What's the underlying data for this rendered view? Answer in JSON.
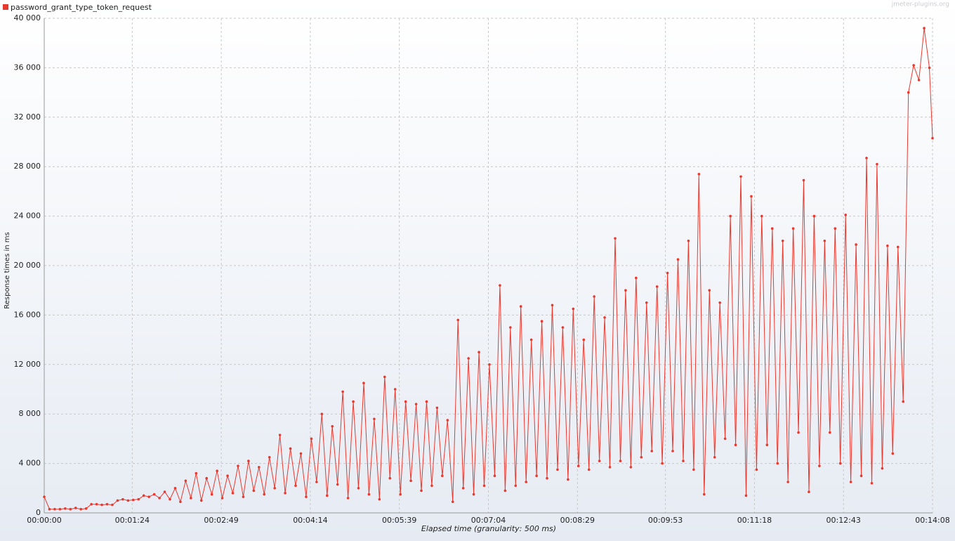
{
  "chart_data": {
    "type": "line",
    "watermark": "jmeter-plugins.org",
    "xlabel": "Elapsed time (granularity: 500 ms)",
    "ylabel": "Response times in ms",
    "xlim": [
      0,
      848
    ],
    "ylim": [
      0,
      40000
    ],
    "xticks": [
      {
        "value": 0,
        "label": "00:00:00"
      },
      {
        "value": 84,
        "label": "00:01:24"
      },
      {
        "value": 169,
        "label": "00:02:49"
      },
      {
        "value": 254,
        "label": "00:04:14"
      },
      {
        "value": 339,
        "label": "00:05:39"
      },
      {
        "value": 424,
        "label": "00:07:04"
      },
      {
        "value": 509,
        "label": "00:08:29"
      },
      {
        "value": 593,
        "label": "00:09:53"
      },
      {
        "value": 678,
        "label": "00:11:18"
      },
      {
        "value": 763,
        "label": "00:12:43"
      },
      {
        "value": 848,
        "label": "00:14:08"
      }
    ],
    "yticks": [
      0,
      {
        "value": 4000,
        "label": "4 000"
      },
      {
        "value": 8000,
        "label": "8 000"
      },
      {
        "value": 12000,
        "label": "12 000"
      },
      {
        "value": 16000,
        "label": "16 000"
      },
      {
        "value": 20000,
        "label": "20 000"
      },
      {
        "value": 24000,
        "label": "24 000"
      },
      {
        "value": 28000,
        "label": "28 000"
      },
      {
        "value": 32000,
        "label": "32 000"
      },
      {
        "value": 36000,
        "label": "36 000"
      },
      {
        "value": 40000,
        "label": "40 000"
      }
    ],
    "grid": true,
    "legend": "top-left",
    "x": [
      0,
      5,
      10,
      15,
      20,
      25,
      30,
      35,
      40,
      45,
      50,
      55,
      60,
      65,
      70,
      75,
      80,
      85,
      90,
      95,
      100,
      105,
      110,
      115,
      120,
      125,
      130,
      135,
      140,
      145,
      150,
      155,
      160,
      165,
      170,
      175,
      180,
      185,
      190,
      195,
      200,
      205,
      210,
      215,
      220,
      225,
      230,
      235,
      240,
      245,
      250,
      255,
      260,
      265,
      270,
      275,
      280,
      285,
      290,
      295,
      300,
      305,
      310,
      315,
      320,
      325,
      330,
      335,
      340,
      345,
      350,
      355,
      360,
      365,
      370,
      375,
      380,
      385,
      390,
      395,
      400,
      405,
      410,
      415,
      420,
      425,
      430,
      435,
      440,
      445,
      450,
      455,
      460,
      465,
      470,
      475,
      480,
      485,
      490,
      495,
      500,
      505,
      510,
      515,
      520,
      525,
      530,
      535,
      540,
      545,
      550,
      555,
      560,
      565,
      570,
      575,
      580,
      585,
      590,
      595,
      600,
      605,
      610,
      615,
      620,
      625,
      630,
      635,
      640,
      645,
      650,
      655,
      660,
      665,
      670,
      675,
      680,
      685,
      690,
      695,
      700,
      705,
      710,
      715,
      720,
      725,
      730,
      735,
      740,
      745,
      750,
      755,
      760,
      765,
      770,
      775,
      780,
      785,
      790,
      795,
      800,
      805,
      810,
      815,
      820,
      825,
      830,
      835,
      840,
      845,
      848
    ],
    "series": [
      {
        "name": "password_grant_type_token_request",
        "color": "#e8392f",
        "values": [
          1300,
          300,
          300,
          300,
          350,
          300,
          400,
          300,
          350,
          700,
          700,
          650,
          700,
          650,
          1000,
          1100,
          1000,
          1050,
          1100,
          1400,
          1300,
          1500,
          1200,
          1700,
          1100,
          2000,
          900,
          2600,
          1200,
          3200,
          1000,
          2800,
          1500,
          3400,
          1200,
          3000,
          1600,
          3800,
          1300,
          4200,
          1800,
          3700,
          1500,
          4500,
          2000,
          6300,
          1600,
          5200,
          2200,
          4800,
          1300,
          6000,
          2500,
          8000,
          1400,
          7000,
          2300,
          9800,
          1200,
          9000,
          2000,
          10500,
          1500,
          7600,
          1100,
          11000,
          2800,
          10000,
          1500,
          9000,
          2600,
          8800,
          1800,
          9000,
          2200,
          8500,
          3000,
          7500,
          900,
          15600,
          2000,
          12500,
          1500,
          13000,
          2200,
          12000,
          3000,
          18400,
          1800,
          15000,
          2200,
          16700,
          2500,
          14000,
          3000,
          15500,
          2800,
          16800,
          3500,
          15000,
          2700,
          16500,
          3800,
          14000,
          3500,
          17500,
          4200,
          15800,
          3700,
          22200,
          4200,
          18000,
          3700,
          19000,
          4500,
          17000,
          5000,
          18300,
          4000,
          19400,
          5000,
          20500,
          4200,
          22000,
          3500,
          27400,
          1500,
          18000,
          4500,
          17000,
          6000,
          24000,
          5500,
          27200,
          1400,
          25600,
          3500,
          24000,
          5500,
          23000,
          4000,
          22000,
          2500,
          23000,
          6500,
          26900,
          1700,
          24000,
          3800,
          22000,
          6500,
          23000,
          4000,
          24100,
          2500,
          21700,
          3000,
          28700,
          2400,
          28200,
          3600,
          21600,
          4800,
          21500,
          9000,
          34000,
          36200,
          35000,
          39200,
          36000,
          30300
        ]
      }
    ]
  }
}
